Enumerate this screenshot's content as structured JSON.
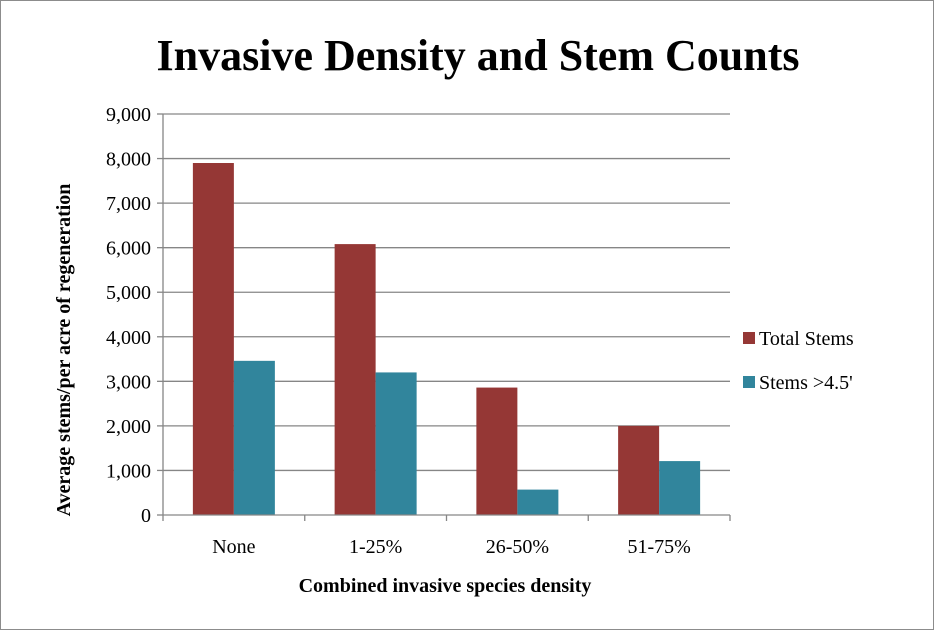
{
  "chart_data": {
    "type": "bar",
    "title": "Invasive Density and Stem Counts",
    "xlabel": "Combined invasive species density",
    "ylabel": "Average stems/per acre of regeneration",
    "categories": [
      "None",
      "1-25%",
      "26-50%",
      "51-75%"
    ],
    "series": [
      {
        "name": "Total Stems",
        "color": "#953735",
        "values": [
          7900,
          6080,
          2860,
          2000
        ]
      },
      {
        "name": "Stems >4.5'",
        "color": "#31859c",
        "values": [
          3460,
          3200,
          570,
          1210
        ]
      }
    ],
    "ylim": [
      0,
      9000
    ],
    "yticks": [
      "0",
      "1,000",
      "2,000",
      "3,000",
      "4,000",
      "5,000",
      "6,000",
      "7,000",
      "8,000",
      "9,000"
    ],
    "grid": true,
    "legend_position": "right"
  }
}
